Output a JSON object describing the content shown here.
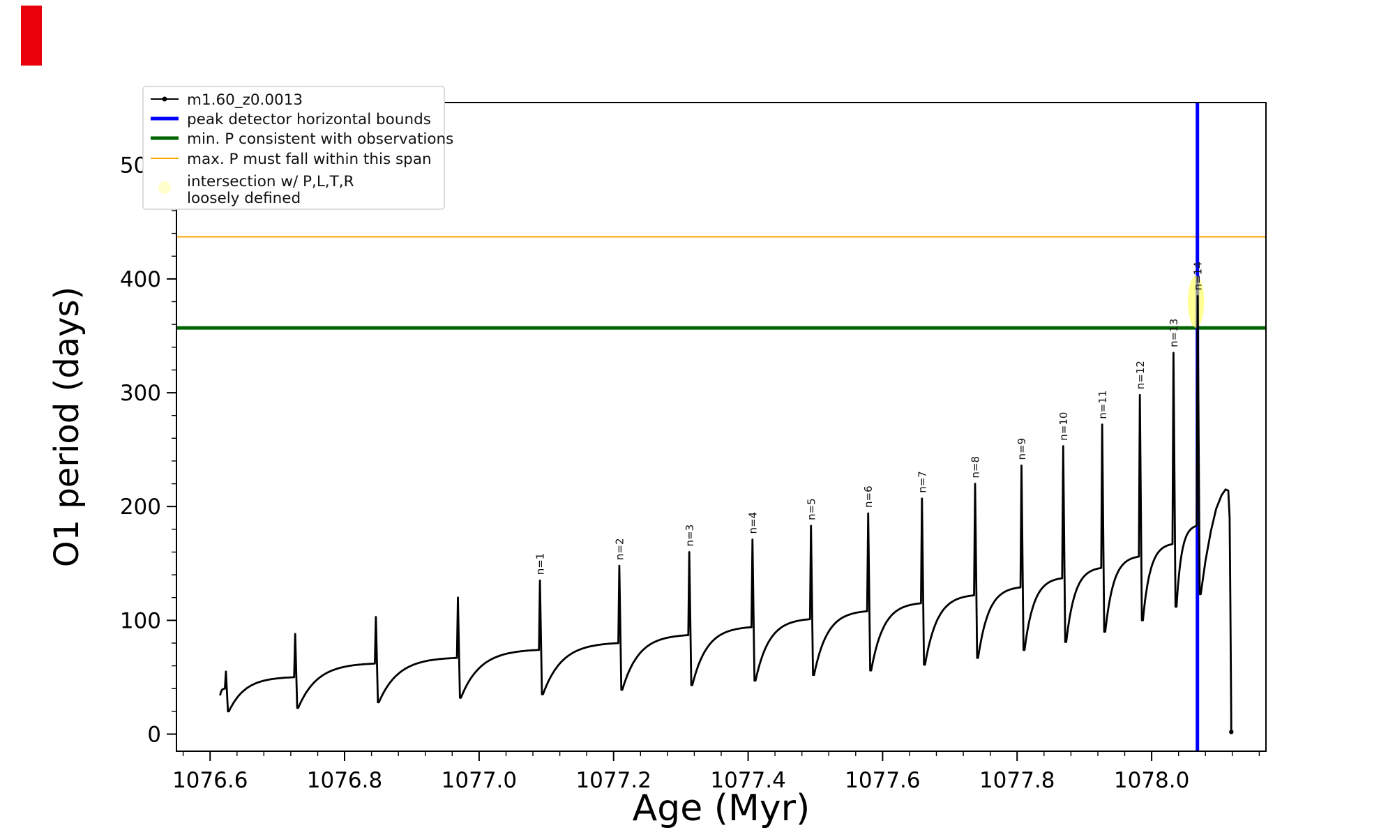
{
  "figure": {
    "background": "#ffffff",
    "artifact_color": "#e8000b"
  },
  "legend": {
    "items": [
      {
        "label": "m1.60_z0.0013",
        "type": "line-dot",
        "color": "#000000",
        "width": 2
      },
      {
        "label": "peak detector horizontal bounds",
        "type": "line",
        "color": "#0000ff",
        "width": 5
      },
      {
        "label": "min. P consistent with observations",
        "type": "line",
        "color": "#006400",
        "width": 5
      },
      {
        "label": "max. P must fall within this span",
        "type": "line",
        "color": "#ffa500",
        "width": 2
      },
      {
        "label": "intersection w/ P,L,T,R\nloosely defined",
        "type": "dot",
        "color": "#ffff99",
        "width": 0
      }
    ]
  },
  "chart_data": {
    "type": "line",
    "title": "",
    "xlabel": "Age (Myr)",
    "ylabel": "O1 period (days)",
    "series_label": "m1.60_z0.0013",
    "xlim": [
      1076.55,
      1078.17
    ],
    "ylim": [
      -15,
      555
    ],
    "xticks": [
      1076.6,
      1076.8,
      1077.0,
      1077.2,
      1077.4,
      1077.6,
      1077.8,
      1078.0
    ],
    "yticks": [
      0,
      100,
      200,
      300,
      400,
      500
    ],
    "x_minor_step": 0.04,
    "y_minor_step": 20,
    "grid": false,
    "legend_position": "upper-left",
    "hlines": [
      {
        "y": 357,
        "color": "#006400",
        "width": 5,
        "label": "min. P consistent with observations"
      },
      {
        "y": 437,
        "color": "#ffa500",
        "width": 2,
        "label": "max. P must fall within this span"
      }
    ],
    "vlines": [
      {
        "x": 1078.068,
        "color": "#0000ff",
        "width": 5,
        "label": "peak detector horizontal bounds"
      }
    ],
    "highlight": {
      "x": 1078.066,
      "p": 380,
      "rx": 0.012,
      "rp": 23,
      "color": "#ffff4d",
      "opacity": 0.6,
      "label": "intersection w/ P,L,T,R loosely defined"
    },
    "cycles": [
      {
        "t0": 1076.615,
        "t1": 1076.622,
        "p0": 34,
        "p1": 40,
        "peak": 55,
        "label": null
      },
      {
        "t0": 1076.628,
        "t1": 1076.725,
        "p0": 20,
        "p1": 50,
        "peak": 88,
        "label": null
      },
      {
        "t0": 1076.731,
        "t1": 1076.845,
        "p0": 23,
        "p1": 62,
        "peak": 103,
        "label": null
      },
      {
        "t0": 1076.851,
        "t1": 1076.967,
        "p0": 28,
        "p1": 67,
        "peak": 120,
        "label": null
      },
      {
        "t0": 1076.973,
        "t1": 1077.089,
        "p0": 32,
        "p1": 74,
        "peak": 135,
        "label": "n=1"
      },
      {
        "t0": 1077.095,
        "t1": 1077.207,
        "p0": 35,
        "p1": 80,
        "peak": 148,
        "label": "n=2"
      },
      {
        "t0": 1077.213,
        "t1": 1077.311,
        "p0": 39,
        "p1": 87,
        "peak": 160,
        "label": "n=3"
      },
      {
        "t0": 1077.317,
        "t1": 1077.405,
        "p0": 43,
        "p1": 94,
        "peak": 171,
        "label": "n=4"
      },
      {
        "t0": 1077.411,
        "t1": 1077.492,
        "p0": 47,
        "p1": 101,
        "peak": 183,
        "label": "n=5"
      },
      {
        "t0": 1077.498,
        "t1": 1077.577,
        "p0": 52,
        "p1": 108,
        "peak": 194,
        "label": "n=6"
      },
      {
        "t0": 1077.583,
        "t1": 1077.657,
        "p0": 56,
        "p1": 115,
        "peak": 207,
        "label": "n=7"
      },
      {
        "t0": 1077.663,
        "t1": 1077.736,
        "p0": 61,
        "p1": 122,
        "peak": 220,
        "label": "n=8"
      },
      {
        "t0": 1077.742,
        "t1": 1077.805,
        "p0": 67,
        "p1": 129,
        "peak": 236,
        "label": "n=9"
      },
      {
        "t0": 1077.811,
        "t1": 1077.867,
        "p0": 74,
        "p1": 137,
        "peak": 253,
        "label": "n=10"
      },
      {
        "t0": 1077.873,
        "t1": 1077.925,
        "p0": 81,
        "p1": 146,
        "peak": 272,
        "label": "n=11"
      },
      {
        "t0": 1077.931,
        "t1": 1077.981,
        "p0": 90,
        "p1": 156,
        "peak": 298,
        "label": "n=12"
      },
      {
        "t0": 1077.987,
        "t1": 1078.031,
        "p0": 100,
        "p1": 167,
        "peak": 335,
        "label": "n=13"
      },
      {
        "t0": 1078.037,
        "t1": 1078.067,
        "p0": 112,
        "p1": 183,
        "peak": 385,
        "label": "n=14"
      }
    ],
    "tail_points": [
      [
        1078.073,
        123
      ],
      [
        1078.08,
        152
      ],
      [
        1078.088,
        178
      ],
      [
        1078.096,
        198
      ],
      [
        1078.104,
        210
      ],
      [
        1078.11,
        215
      ],
      [
        1078.114,
        214
      ],
      [
        1078.116,
        190
      ],
      [
        1078.117,
        120
      ],
      [
        1078.118,
        40
      ],
      [
        1078.1185,
        2
      ]
    ]
  }
}
